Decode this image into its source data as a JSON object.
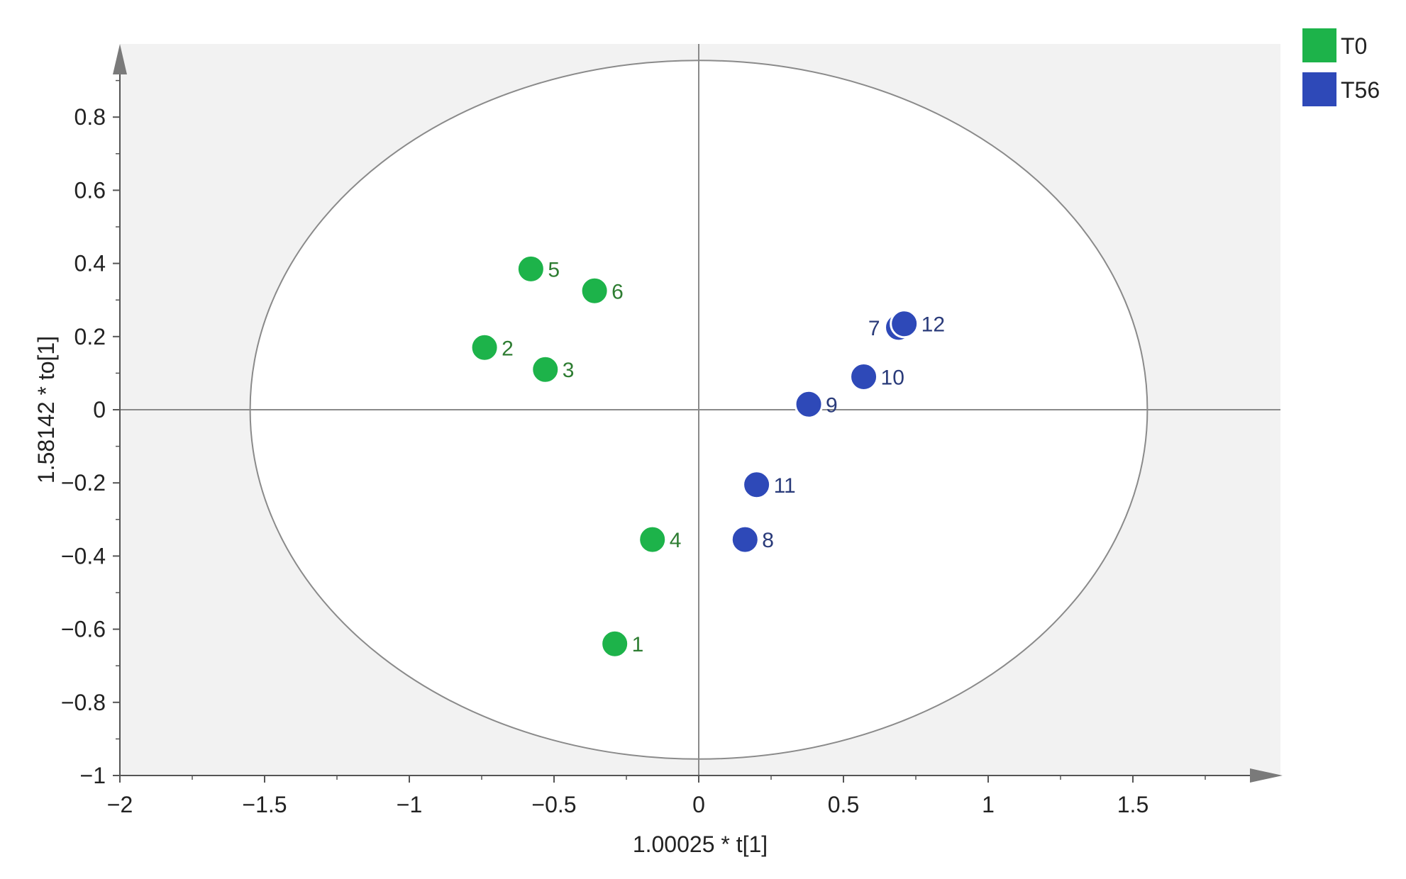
{
  "chart_data": {
    "type": "scatter",
    "title": "",
    "xlabel": "1.00025 * t[1]",
    "ylabel": "1.58142 * to[1]",
    "xlim": [
      -2,
      2
    ],
    "ylim": [
      -1,
      1
    ],
    "x_ticks": [
      -2,
      -1.5,
      -1,
      -0.5,
      0,
      0.5,
      1,
      1.5
    ],
    "x_tick_labels": [
      "-2",
      "-1.5",
      "-1",
      "-0.5",
      "0",
      "0.5",
      "1",
      "1.5"
    ],
    "y_ticks": [
      -1,
      -0.8,
      -0.6,
      -0.4,
      -0.2,
      0,
      0.2,
      0.4,
      0.6,
      0.8
    ],
    "y_tick_labels": [
      "-1",
      "-0.8",
      "-0.6",
      "-0.4",
      "-0.2",
      "0",
      "0.2",
      "0.4",
      "0.6",
      "0.8"
    ],
    "grid": false,
    "legend_position": "top-right",
    "ellipse": {
      "rx": 1.55,
      "ry": 0.955
    },
    "series": [
      {
        "name": "T0",
        "color": "#1db34a",
        "points": [
          {
            "label": "1",
            "x": -0.29,
            "y": -0.64
          },
          {
            "label": "2",
            "x": -0.74,
            "y": 0.17
          },
          {
            "label": "3",
            "x": -0.53,
            "y": 0.11
          },
          {
            "label": "4",
            "x": -0.16,
            "y": -0.355
          },
          {
            "label": "5",
            "x": -0.58,
            "y": 0.385
          },
          {
            "label": "6",
            "x": -0.36,
            "y": 0.325
          }
        ]
      },
      {
        "name": "T56",
        "color": "#2e49b8",
        "points": [
          {
            "label": "7",
            "x": 0.69,
            "y": 0.225
          },
          {
            "label": "8",
            "x": 0.16,
            "y": -0.355
          },
          {
            "label": "9",
            "x": 0.38,
            "y": 0.015
          },
          {
            "label": "10",
            "x": 0.57,
            "y": 0.09
          },
          {
            "label": "11",
            "x": 0.2,
            "y": -0.205
          },
          {
            "label": "12",
            "x": 0.71,
            "y": 0.235
          }
        ]
      }
    ]
  }
}
